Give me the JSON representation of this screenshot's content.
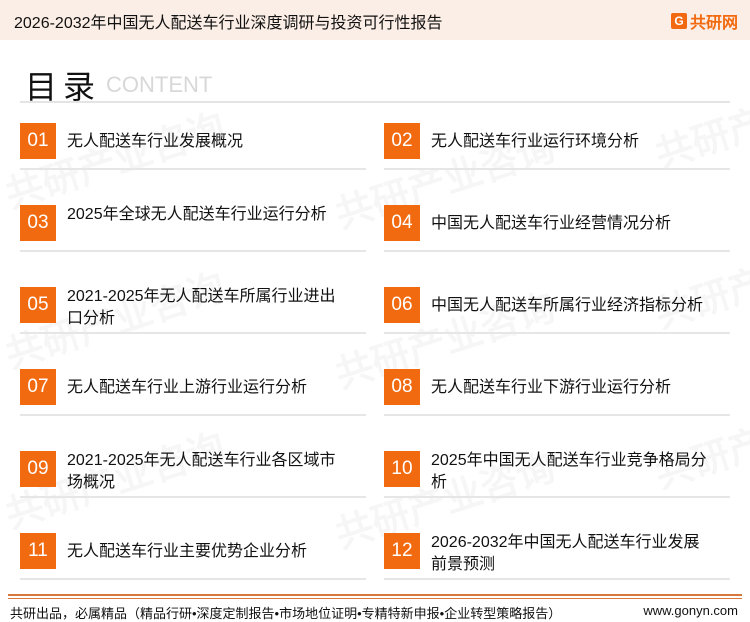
{
  "header": {
    "title": "2026-2032年中国无人配送车行业深度调研与投资可行性报告",
    "logo_text": "共研网",
    "logo_mark": "G"
  },
  "watermark": {
    "text": "共研产业咨询",
    "url": "www.gonyn.com"
  },
  "toc": {
    "title": "目录",
    "subtitle": "CONTENT"
  },
  "items": [
    {
      "num": "01",
      "label": "无人配送车行业发展概况"
    },
    {
      "num": "02",
      "label": "无人配送车行业运行环境分析"
    },
    {
      "num": "03",
      "label": "2025年全球无人配送车行业运行分析"
    },
    {
      "num": "04",
      "label": "中国无人配送车行业经营情况分析"
    },
    {
      "num": "05",
      "label": "2021-2025年无人配送车所属行业进出口分析"
    },
    {
      "num": "06",
      "label": "中国无人配送车所属行业经济指标分析"
    },
    {
      "num": "07",
      "label": "无人配送车行业上游行业运行分析"
    },
    {
      "num": "08",
      "label": "无人配送车行业下游行业运行分析"
    },
    {
      "num": "09",
      "label": "2021-2025年无人配送车行业各区域市场概况"
    },
    {
      "num": "10",
      "label": "2025年中国无人配送车行业竞争格局分析"
    },
    {
      "num": "11",
      "label": "无人配送车行业主要优势企业分析"
    },
    {
      "num": "12",
      "label": "2026-2032年中国无人配送车行业发展前景预测"
    }
  ],
  "footer": {
    "text": "共研出品，必属精品（精品行研•深度定制报告•市场地位证明•专精特新申报•企业转型策略报告）",
    "url": "www.gonyn.com"
  },
  "colors": {
    "accent": "#f26a10",
    "header_bg": "#fbeee6",
    "footer_rule": "#d9763a"
  }
}
